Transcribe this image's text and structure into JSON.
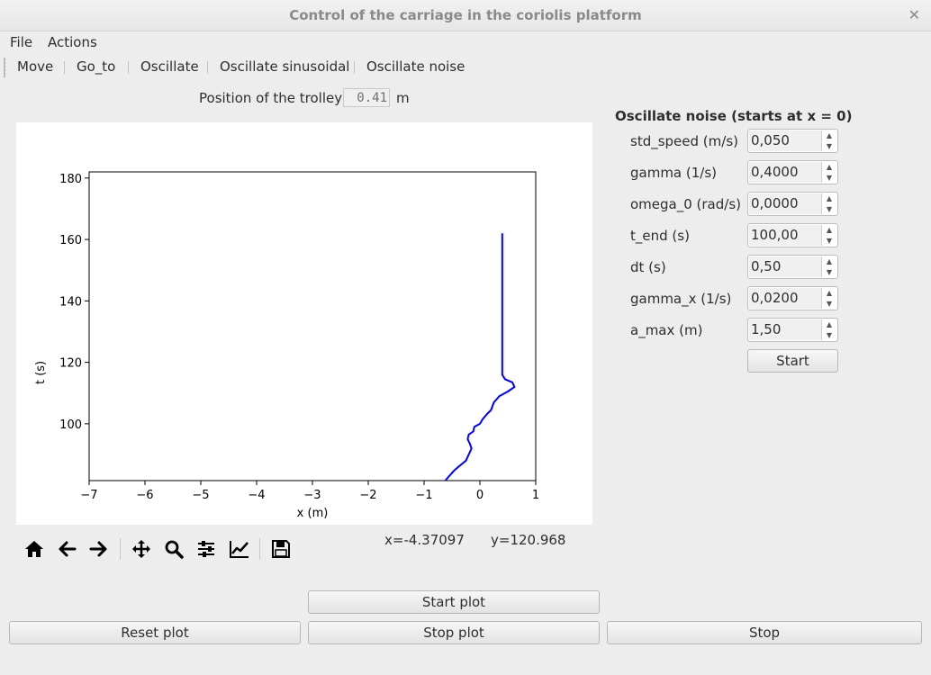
{
  "window": {
    "title": "Control of the carriage in the coriolis platform"
  },
  "menu": [
    "File",
    "Actions"
  ],
  "toolbar": [
    "Move",
    "Go_to",
    "Oscillate",
    "Oscillate sinusoidal",
    "Oscillate noise"
  ],
  "trolley": {
    "label": "Position of the trolley",
    "value": "0.41",
    "unit": "m"
  },
  "panel": {
    "title": "Oscillate noise (starts at x = 0)",
    "params": [
      {
        "label": "std_speed (m/s)",
        "value": "0,050"
      },
      {
        "label": "gamma (1/s)",
        "value": "0,4000"
      },
      {
        "label": "omega_0 (rad/s)",
        "value": "0,0000"
      },
      {
        "label": "t_end (s)",
        "value": "100,00"
      },
      {
        "label": "dt (s)",
        "value": "0,50"
      },
      {
        "label": "gamma_x (1/s)",
        "value": "0,0200"
      },
      {
        "label": "a_max (m)",
        "value": "1,50"
      }
    ],
    "start_label": "Start"
  },
  "status": {
    "x": "x=-4.37097",
    "y": "y=120.968"
  },
  "buttons": {
    "start_plot": "Start plot",
    "reset_plot": "Reset plot",
    "stop_plot": "Stop plot",
    "stop": "Stop"
  },
  "nav_icons": [
    "home-icon",
    "back-arrow-icon",
    "forward-arrow-icon",
    "pan-icon",
    "zoom-icon",
    "configure-subplots-icon",
    "edit-axis-icon",
    "save-icon"
  ],
  "chart_data": {
    "type": "line",
    "xlabel": "x (m)",
    "ylabel": "t (s)",
    "xlim": [
      -7,
      1
    ],
    "ylim": [
      81.5,
      182
    ],
    "xticks": [
      "−7",
      "−6",
      "−5",
      "−4",
      "−3",
      "−2",
      "−1",
      "0",
      "1"
    ],
    "xtick_values": [
      -7,
      -6,
      -5,
      -4,
      -3,
      -2,
      -1,
      0,
      1
    ],
    "yticks": [
      "100",
      "120",
      "140",
      "160",
      "180"
    ],
    "ytick_values": [
      100,
      120,
      140,
      160,
      180
    ],
    "series_color": "#0000ff",
    "x": [
      -0.62,
      -0.55,
      -0.45,
      -0.35,
      -0.25,
      -0.2,
      -0.15,
      -0.18,
      -0.22,
      -0.2,
      -0.12,
      -0.1,
      0.0,
      0.05,
      0.12,
      0.2,
      0.25,
      0.35,
      0.5,
      0.62,
      0.58,
      0.45,
      0.4,
      0.4
    ],
    "y": [
      81.5,
      83,
      85,
      86.5,
      88,
      90,
      92,
      93.5,
      95,
      96.5,
      97.5,
      99,
      100,
      101.5,
      103,
      104.5,
      107,
      109,
      110.5,
      112,
      113.5,
      114.5,
      116,
      162
    ]
  }
}
